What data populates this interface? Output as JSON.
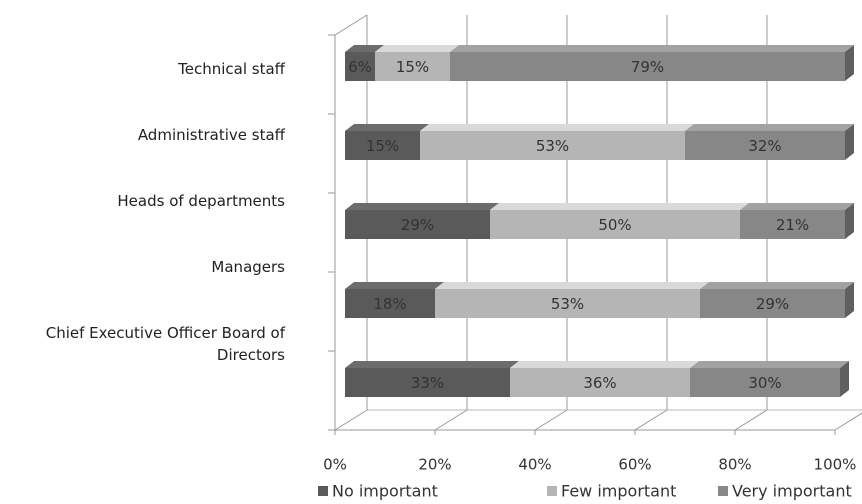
{
  "chart_data": {
    "type": "bar",
    "orientation": "horizontal",
    "stacked": true,
    "grid": true,
    "categories": [
      "Technical staff",
      "Administrative staff",
      "Heads of departments",
      "Managers",
      "Chief Executive Officer Board of Directors"
    ],
    "series": [
      {
        "name": "No important",
        "color": "#5a5a5a",
        "values": [
          6,
          15,
          29,
          18,
          33
        ],
        "value_labels": [
          "6%",
          "15%",
          "29%",
          "18%",
          "33%"
        ]
      },
      {
        "name": "Few important",
        "color": "#b5b5b5",
        "values": [
          15,
          53,
          50,
          53,
          36
        ],
        "value_labels": [
          "15%",
          "53%",
          "50%",
          "53%",
          "36%"
        ]
      },
      {
        "name": "Very important",
        "color": "#878787",
        "values": [
          79,
          32,
          21,
          29,
          30
        ],
        "value_labels": [
          "79%",
          "32%",
          "21%",
          "29%",
          "30%"
        ]
      }
    ],
    "xlim": [
      0,
      100
    ],
    "xticks": [
      {
        "value": 0,
        "label": "0%"
      },
      {
        "value": 20,
        "label": "20%"
      },
      {
        "value": 40,
        "label": "40%"
      },
      {
        "value": 60,
        "label": "60%"
      },
      {
        "value": 80,
        "label": "80%"
      },
      {
        "value": 100,
        "label": "100%"
      }
    ],
    "legend": "bottom"
  }
}
